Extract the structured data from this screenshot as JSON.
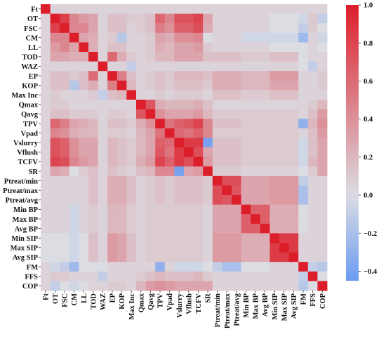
{
  "chart_data": {
    "type": "heatmap",
    "labels": [
      "Ft",
      "OT",
      "FSC",
      "CM",
      "LL",
      "TOD",
      "WAZ",
      "EP",
      "KOP",
      "Max Inc",
      "Qmax",
      "Qavg",
      "TPV",
      "Vpad",
      "Vslurry",
      "Vflush",
      "TCFV",
      "SR",
      "Ptreat/min",
      "Ptreat/max",
      "Ptreat/avg",
      "Min BP",
      "Max BP",
      "Avg BP",
      "Min SIP",
      "Max SIP",
      "Avg SIP",
      "FM",
      "FFS",
      "COP"
    ],
    "values": [
      [
        1.0,
        0.05,
        0.05,
        0.05,
        0.05,
        0.05,
        0.05,
        0.05,
        0.05,
        0.05,
        0.05,
        0.05,
        0.05,
        0.05,
        0.05,
        0.05,
        0.05,
        0.05,
        0.05,
        0.05,
        0.05,
        0.05,
        0.05,
        0.05,
        0.05,
        0.05,
        0.05,
        0.05,
        0.05,
        0.05
      ],
      [
        0.05,
        1.0,
        0.82,
        0.45,
        0.35,
        0.3,
        0.05,
        0.15,
        0.15,
        0.1,
        0.1,
        0.15,
        0.62,
        0.45,
        0.72,
        0.72,
        0.8,
        0.3,
        0.05,
        0.05,
        0.05,
        0.05,
        0.05,
        0.05,
        0.0,
        0.0,
        0.0,
        -0.05,
        0.1,
        -0.1
      ],
      [
        0.05,
        0.82,
        1.0,
        0.45,
        0.45,
        0.3,
        0.05,
        0.15,
        0.15,
        0.05,
        0.1,
        0.15,
        0.5,
        0.4,
        0.65,
        0.65,
        0.75,
        0.25,
        0.05,
        0.05,
        0.05,
        0.05,
        0.05,
        0.05,
        0.0,
        0.0,
        0.0,
        -0.1,
        0.1,
        0.0
      ],
      [
        0.05,
        0.45,
        0.45,
        1.0,
        0.3,
        0.25,
        0.05,
        0.1,
        -0.15,
        0.05,
        0.05,
        0.1,
        0.3,
        0.25,
        0.4,
        0.4,
        0.45,
        0.0,
        0.05,
        0.05,
        0.05,
        -0.05,
        -0.05,
        -0.05,
        -0.05,
        -0.05,
        -0.05,
        -0.25,
        0.05,
        -0.05
      ],
      [
        0.05,
        0.35,
        0.45,
        0.3,
        1.0,
        0.25,
        0.05,
        0.15,
        0.15,
        0.05,
        0.05,
        0.1,
        0.25,
        0.2,
        0.3,
        0.3,
        0.35,
        0.1,
        0.05,
        0.05,
        0.05,
        0.05,
        0.05,
        0.05,
        0.0,
        0.0,
        0.0,
        0.0,
        0.05,
        0.0
      ],
      [
        0.05,
        0.3,
        0.3,
        0.25,
        0.25,
        1.0,
        0.05,
        0.6,
        0.25,
        0.1,
        0.05,
        0.1,
        0.2,
        0.2,
        0.3,
        0.3,
        0.3,
        0.15,
        0.15,
        0.15,
        0.15,
        0.1,
        0.1,
        0.1,
        0.15,
        0.15,
        0.15,
        0.0,
        0.05,
        0.05
      ],
      [
        0.05,
        0.05,
        0.05,
        0.05,
        0.05,
        0.05,
        1.0,
        0.05,
        0.05,
        -0.1,
        0.05,
        0.05,
        0.05,
        0.05,
        0.05,
        0.05,
        0.05,
        0.05,
        0.05,
        0.05,
        0.05,
        0.05,
        0.05,
        0.05,
        0.05,
        0.05,
        0.05,
        0.0,
        -0.1,
        0.05
      ],
      [
        0.05,
        0.15,
        0.15,
        0.1,
        0.15,
        0.6,
        0.05,
        1.0,
        0.5,
        0.15,
        0.05,
        0.1,
        0.15,
        0.1,
        0.2,
        0.2,
        0.2,
        0.15,
        0.25,
        0.25,
        0.25,
        0.2,
        0.2,
        0.2,
        0.35,
        0.35,
        0.35,
        0.05,
        0.05,
        0.1
      ],
      [
        0.05,
        0.15,
        0.15,
        -0.15,
        0.15,
        0.25,
        0.05,
        0.5,
        1.0,
        0.2,
        0.05,
        0.1,
        0.15,
        0.1,
        0.15,
        0.15,
        0.15,
        0.1,
        0.25,
        0.25,
        0.25,
        0.2,
        0.2,
        0.2,
        0.3,
        0.3,
        0.3,
        0.05,
        0.05,
        0.1
      ],
      [
        0.05,
        0.1,
        0.05,
        0.05,
        0.05,
        0.1,
        -0.1,
        0.15,
        0.2,
        1.0,
        0.05,
        0.05,
        0.1,
        0.05,
        0.1,
        0.1,
        0.1,
        0.05,
        0.15,
        0.15,
        0.15,
        0.1,
        0.1,
        0.1,
        0.15,
        0.15,
        0.15,
        0.05,
        0.05,
        0.05
      ],
      [
        0.05,
        0.1,
        0.1,
        0.05,
        0.05,
        0.05,
        0.05,
        0.05,
        0.05,
        0.05,
        1.0,
        0.7,
        0.25,
        0.2,
        0.2,
        0.2,
        0.25,
        0.15,
        0.05,
        0.05,
        0.05,
        0.05,
        0.05,
        0.05,
        0.05,
        0.05,
        0.05,
        0.05,
        0.1,
        0.2
      ],
      [
        0.05,
        0.15,
        0.15,
        0.1,
        0.1,
        0.1,
        0.05,
        0.1,
        0.1,
        0.05,
        0.7,
        1.0,
        0.4,
        0.3,
        0.3,
        0.3,
        0.35,
        0.2,
        0.1,
        0.1,
        0.1,
        0.1,
        0.1,
        0.1,
        0.1,
        0.1,
        0.1,
        0.05,
        0.15,
        0.35
      ],
      [
        0.05,
        0.62,
        0.5,
        0.3,
        0.25,
        0.2,
        0.05,
        0.15,
        0.15,
        0.1,
        0.25,
        0.4,
        1.0,
        0.55,
        0.65,
        0.7,
        0.8,
        0.45,
        0.15,
        0.15,
        0.15,
        0.1,
        0.1,
        0.1,
        0.1,
        0.1,
        0.1,
        -0.3,
        0.2,
        0.4
      ],
      [
        0.05,
        0.45,
        0.4,
        0.25,
        0.2,
        0.2,
        0.05,
        0.1,
        0.1,
        0.05,
        0.2,
        0.3,
        0.55,
        1.0,
        0.6,
        0.55,
        0.65,
        0.45,
        0.1,
        0.1,
        0.1,
        0.1,
        0.1,
        0.1,
        0.1,
        0.1,
        0.1,
        0.05,
        0.15,
        0.35
      ],
      [
        0.05,
        0.72,
        0.65,
        0.4,
        0.3,
        0.3,
        0.05,
        0.2,
        0.15,
        0.1,
        0.2,
        0.3,
        0.65,
        0.6,
        1.0,
        0.85,
        0.85,
        -0.4,
        0.15,
        0.15,
        0.15,
        0.1,
        0.1,
        0.1,
        0.1,
        0.1,
        0.1,
        -0.05,
        0.15,
        0.3
      ],
      [
        0.05,
        0.72,
        0.65,
        0.4,
        0.3,
        0.3,
        0.05,
        0.2,
        0.15,
        0.1,
        0.2,
        0.3,
        0.7,
        0.55,
        0.85,
        1.0,
        0.75,
        0.3,
        0.15,
        0.15,
        0.15,
        0.1,
        0.1,
        0.1,
        0.1,
        0.1,
        0.1,
        -0.05,
        0.15,
        0.3
      ],
      [
        0.05,
        0.8,
        0.75,
        0.45,
        0.35,
        0.3,
        0.05,
        0.2,
        0.15,
        0.1,
        0.25,
        0.35,
        0.8,
        0.65,
        0.85,
        0.75,
        1.0,
        0.35,
        0.15,
        0.15,
        0.15,
        0.1,
        0.1,
        0.1,
        0.1,
        0.1,
        0.1,
        -0.05,
        0.2,
        0.3
      ],
      [
        0.05,
        0.3,
        0.25,
        0.0,
        0.1,
        0.15,
        0.05,
        0.15,
        0.1,
        0.05,
        0.15,
        0.2,
        0.45,
        0.45,
        -0.4,
        0.3,
        0.35,
        1.0,
        0.1,
        0.1,
        0.1,
        0.05,
        0.05,
        0.05,
        0.05,
        0.05,
        0.05,
        0.0,
        0.1,
        0.3
      ],
      [
        0.05,
        0.05,
        0.05,
        0.05,
        0.05,
        0.15,
        0.05,
        0.25,
        0.25,
        0.15,
        0.05,
        0.1,
        0.15,
        0.1,
        0.15,
        0.15,
        0.15,
        0.1,
        1.0,
        0.75,
        0.75,
        0.3,
        0.3,
        0.3,
        0.35,
        0.35,
        0.35,
        -0.1,
        0.05,
        0.05
      ],
      [
        0.05,
        0.05,
        0.05,
        0.05,
        0.05,
        0.15,
        0.05,
        0.25,
        0.25,
        0.15,
        0.05,
        0.1,
        0.15,
        0.1,
        0.15,
        0.15,
        0.15,
        0.1,
        0.75,
        1.0,
        0.7,
        0.3,
        0.3,
        0.3,
        0.35,
        0.35,
        0.35,
        -0.2,
        0.05,
        0.05
      ],
      [
        0.05,
        0.05,
        0.05,
        0.05,
        0.05,
        0.15,
        0.05,
        0.25,
        0.25,
        0.15,
        0.05,
        0.1,
        0.15,
        0.1,
        0.15,
        0.15,
        0.15,
        0.1,
        0.75,
        0.7,
        1.0,
        0.3,
        0.3,
        0.3,
        0.35,
        0.35,
        0.35,
        -0.2,
        0.05,
        0.05
      ],
      [
        0.05,
        0.05,
        0.05,
        -0.05,
        0.05,
        0.1,
        0.05,
        0.2,
        0.2,
        0.1,
        0.05,
        0.1,
        0.1,
        0.1,
        0.1,
        0.1,
        0.1,
        0.05,
        0.3,
        0.3,
        0.3,
        1.0,
        0.65,
        0.65,
        0.25,
        0.25,
        0.25,
        0.0,
        0.05,
        0.05
      ],
      [
        0.05,
        0.05,
        0.05,
        -0.05,
        0.05,
        0.1,
        0.05,
        0.2,
        0.2,
        0.1,
        0.05,
        0.1,
        0.1,
        0.1,
        0.1,
        0.1,
        0.1,
        0.05,
        0.3,
        0.3,
        0.3,
        0.65,
        1.0,
        0.65,
        0.25,
        0.25,
        0.25,
        0.0,
        0.05,
        0.05
      ],
      [
        0.05,
        0.05,
        0.05,
        -0.05,
        0.05,
        0.1,
        0.05,
        0.2,
        0.2,
        0.1,
        0.05,
        0.1,
        0.1,
        0.1,
        0.1,
        0.1,
        0.1,
        0.05,
        0.3,
        0.3,
        0.3,
        0.65,
        0.65,
        1.0,
        0.25,
        0.25,
        0.25,
        0.0,
        0.05,
        0.05
      ],
      [
        0.0,
        0.0,
        0.0,
        -0.05,
        0.0,
        0.15,
        0.05,
        0.35,
        0.3,
        0.15,
        0.05,
        0.1,
        0.1,
        0.1,
        0.1,
        0.1,
        0.1,
        0.05,
        0.35,
        0.35,
        0.35,
        0.25,
        0.25,
        0.25,
        1.0,
        0.85,
        0.85,
        0.05,
        0.05,
        0.05
      ],
      [
        0.0,
        0.0,
        0.0,
        -0.05,
        0.0,
        0.15,
        0.05,
        0.35,
        0.3,
        0.15,
        0.05,
        0.1,
        0.1,
        0.1,
        0.1,
        0.1,
        0.1,
        0.05,
        0.35,
        0.35,
        0.35,
        0.25,
        0.25,
        0.25,
        0.85,
        1.0,
        0.85,
        0.05,
        0.05,
        0.05
      ],
      [
        0.0,
        0.0,
        0.0,
        -0.05,
        0.0,
        0.15,
        0.05,
        0.35,
        0.3,
        0.15,
        0.05,
        0.1,
        0.1,
        0.1,
        0.1,
        0.1,
        0.1,
        0.05,
        0.35,
        0.35,
        0.35,
        0.25,
        0.25,
        0.25,
        0.85,
        0.85,
        1.0,
        0.05,
        0.05,
        0.05
      ],
      [
        0.05,
        -0.05,
        -0.1,
        -0.25,
        0.0,
        0.0,
        0.0,
        0.05,
        0.05,
        0.05,
        0.05,
        0.05,
        -0.3,
        0.05,
        -0.05,
        -0.05,
        -0.05,
        0.0,
        -0.1,
        -0.2,
        -0.2,
        0.0,
        0.0,
        0.0,
        0.05,
        0.05,
        0.05,
        1.0,
        -0.1,
        -0.15
      ],
      [
        0.05,
        0.1,
        0.1,
        0.05,
        0.05,
        0.05,
        -0.1,
        0.05,
        0.05,
        0.05,
        0.1,
        0.15,
        0.2,
        0.15,
        0.15,
        0.15,
        0.2,
        0.1,
        0.05,
        0.05,
        0.05,
        0.05,
        0.05,
        0.05,
        0.05,
        0.05,
        0.05,
        -0.1,
        1.0,
        0.0
      ],
      [
        0.05,
        -0.1,
        0.0,
        -0.05,
        0.0,
        0.05,
        0.05,
        0.1,
        0.1,
        0.05,
        0.2,
        0.35,
        0.4,
        0.35,
        0.3,
        0.3,
        0.3,
        0.3,
        0.05,
        0.05,
        0.05,
        0.05,
        0.05,
        0.05,
        0.05,
        0.05,
        0.05,
        -0.15,
        0.0,
        1.0
      ]
    ],
    "vmin": -0.45,
    "vmax": 1.0,
    "colorbar_ticks": [
      1.0,
      0.8,
      0.6,
      0.4,
      0.2,
      0.0,
      -0.2,
      -0.4
    ],
    "colorbar_tick_labels": [
      "1.0",
      "0.8",
      "0.6",
      "0.4",
      "0.2",
      "0.0",
      "−0.2",
      "−0.4"
    ],
    "colormap": "coolwarm",
    "colors": {
      "low": "#6b9bf2",
      "mid": "#dcdde3",
      "high": "#dc1e2a"
    }
  }
}
